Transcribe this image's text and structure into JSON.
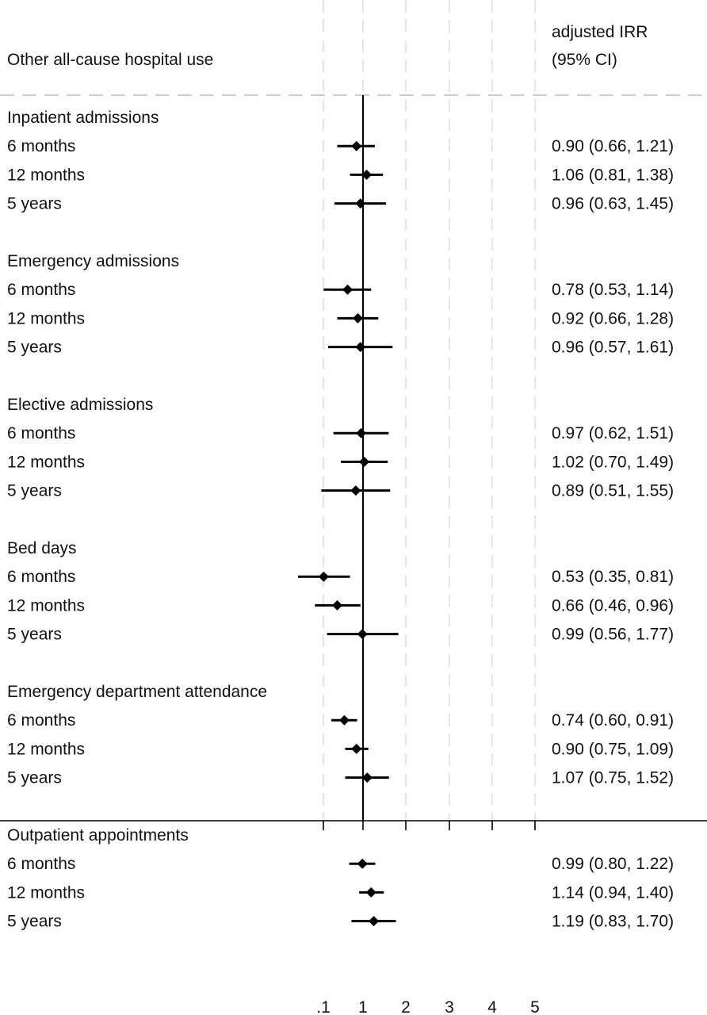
{
  "header": {
    "left_title": "Other all-cause hospital use",
    "right_title_line1": "adjusted IRR",
    "right_title_line2": "(95% CI)"
  },
  "chart_data": {
    "type": "forest",
    "x_scale": "log",
    "x_ticks": [
      ".1",
      "1",
      "2",
      "3",
      "4",
      "5"
    ],
    "x_tick_values": [
      0.1,
      1,
      2,
      3,
      4,
      5
    ],
    "reference_line": 1,
    "grid": true,
    "groups": [
      {
        "label": "Inpatient admissions",
        "rows": [
          {
            "label": "6 months",
            "est": 0.9,
            "lo": 0.66,
            "hi": 1.21,
            "text": "0.90 (0.66, 1.21)"
          },
          {
            "label": "12 months",
            "est": 1.06,
            "lo": 0.81,
            "hi": 1.38,
            "text": "1.06 (0.81, 1.38)"
          },
          {
            "label": "5 years",
            "est": 0.96,
            "lo": 0.63,
            "hi": 1.45,
            "text": "0.96 (0.63, 1.45)"
          }
        ]
      },
      {
        "label": "Emergency admissions",
        "rows": [
          {
            "label": "6 months",
            "est": 0.78,
            "lo": 0.53,
            "hi": 1.14,
            "text": "0.78 (0.53, 1.14)"
          },
          {
            "label": "12 months",
            "est": 0.92,
            "lo": 0.66,
            "hi": 1.28,
            "text": "0.92 (0.66, 1.28)"
          },
          {
            "label": "5 years",
            "est": 0.96,
            "lo": 0.57,
            "hi": 1.61,
            "text": "0.96 (0.57, 1.61)"
          }
        ]
      },
      {
        "label": "Elective admissions",
        "rows": [
          {
            "label": "6 months",
            "est": 0.97,
            "lo": 0.62,
            "hi": 1.51,
            "text": "0.97 (0.62, 1.51)"
          },
          {
            "label": "12 months",
            "est": 1.02,
            "lo": 0.7,
            "hi": 1.49,
            "text": "1.02 (0.70, 1.49)"
          },
          {
            "label": "5 years",
            "est": 0.89,
            "lo": 0.51,
            "hi": 1.55,
            "text": "0.89 (0.51, 1.55)"
          }
        ]
      },
      {
        "label": "Bed days",
        "rows": [
          {
            "label": "6 months",
            "est": 0.53,
            "lo": 0.35,
            "hi": 0.81,
            "text": "0.53 (0.35, 0.81)"
          },
          {
            "label": "12 months",
            "est": 0.66,
            "lo": 0.46,
            "hi": 0.96,
            "text": "0.66 (0.46, 0.96)"
          },
          {
            "label": "5 years",
            "est": 0.99,
            "lo": 0.56,
            "hi": 1.77,
            "text": "0.99 (0.56, 1.77)"
          }
        ]
      },
      {
        "label": "Emergency department attendance",
        "rows": [
          {
            "label": "6 months",
            "est": 0.74,
            "lo": 0.6,
            "hi": 0.91,
            "text": "0.74 (0.60, 0.91)"
          },
          {
            "label": "12 months",
            "est": 0.9,
            "lo": 0.75,
            "hi": 1.09,
            "text": "0.90 (0.75, 1.09)"
          },
          {
            "label": "5 years",
            "est": 1.07,
            "lo": 0.75,
            "hi": 1.52,
            "text": "1.07 (0.75, 1.52)"
          }
        ]
      },
      {
        "label": "Outpatient appointments",
        "rows": [
          {
            "label": "6 months",
            "est": 0.99,
            "lo": 0.8,
            "hi": 1.22,
            "text": "0.99 (0.80, 1.22)"
          },
          {
            "label": "12 months",
            "est": 1.14,
            "lo": 0.94,
            "hi": 1.4,
            "text": "1.14 (0.94, 1.40)"
          },
          {
            "label": "5 years",
            "est": 1.19,
            "lo": 0.83,
            "hi": 1.7,
            "text": "1.19 (0.83, 1.70)"
          }
        ]
      }
    ]
  }
}
